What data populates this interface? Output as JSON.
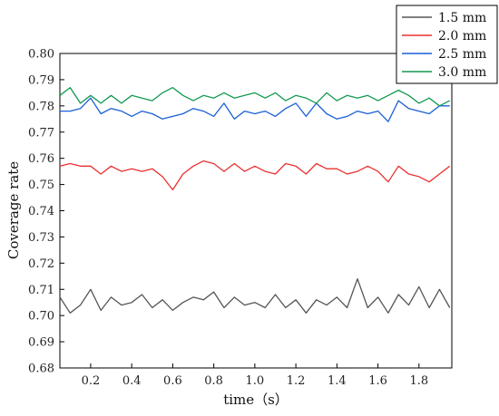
{
  "chart_data": {
    "type": "line",
    "xlabel": "time（s）",
    "ylabel": "Coverage rate",
    "xlim": [
      0.05,
      1.96
    ],
    "ylim": [
      0.68,
      0.8
    ],
    "x_ticks": [
      "0.2",
      "0.4",
      "0.6",
      "0.8",
      "1.0",
      "1.2",
      "1.4",
      "1.6",
      "1.8"
    ],
    "x_tick_values": [
      0.2,
      0.4,
      0.6,
      0.8,
      1.0,
      1.2,
      1.4,
      1.6,
      1.8
    ],
    "y_ticks": [
      "0.68",
      "0.69",
      "0.70",
      "0.71",
      "0.72",
      "0.73",
      "0.74",
      "0.75",
      "0.76",
      "0.77",
      "0.78",
      "0.79",
      "0.80"
    ],
    "y_tick_values": [
      0.68,
      0.69,
      0.7,
      0.71,
      0.72,
      0.73,
      0.74,
      0.75,
      0.76,
      0.77,
      0.78,
      0.79,
      0.8
    ],
    "grid": false,
    "legend_position": "top-right",
    "series": [
      {
        "name": "1.5 mm",
        "color": "#555555",
        "x": [
          0.05,
          0.1,
          0.15,
          0.2,
          0.25,
          0.3,
          0.35,
          0.4,
          0.45,
          0.5,
          0.55,
          0.6,
          0.65,
          0.7,
          0.75,
          0.8,
          0.85,
          0.9,
          0.95,
          1.0,
          1.05,
          1.1,
          1.15,
          1.2,
          1.25,
          1.3,
          1.35,
          1.4,
          1.45,
          1.5,
          1.55,
          1.6,
          1.65,
          1.7,
          1.75,
          1.8,
          1.85,
          1.9,
          1.95
        ],
        "values": [
          0.707,
          0.701,
          0.704,
          0.71,
          0.702,
          0.707,
          0.704,
          0.705,
          0.708,
          0.703,
          0.706,
          0.702,
          0.705,
          0.707,
          0.706,
          0.709,
          0.703,
          0.707,
          0.704,
          0.705,
          0.703,
          0.708,
          0.703,
          0.706,
          0.701,
          0.706,
          0.704,
          0.707,
          0.703,
          0.714,
          0.703,
          0.707,
          0.701,
          0.708,
          0.704,
          0.711,
          0.703,
          0.71,
          0.703
        ]
      },
      {
        "name": "2.0 mm",
        "color": "#e8312f",
        "x": [
          0.05,
          0.1,
          0.15,
          0.2,
          0.25,
          0.3,
          0.35,
          0.4,
          0.45,
          0.5,
          0.55,
          0.6,
          0.65,
          0.7,
          0.75,
          0.8,
          0.85,
          0.9,
          0.95,
          1.0,
          1.05,
          1.1,
          1.15,
          1.2,
          1.25,
          1.3,
          1.35,
          1.4,
          1.45,
          1.5,
          1.55,
          1.6,
          1.65,
          1.7,
          1.75,
          1.8,
          1.85,
          1.9,
          1.95
        ],
        "values": [
          0.757,
          0.758,
          0.757,
          0.757,
          0.754,
          0.757,
          0.755,
          0.756,
          0.755,
          0.756,
          0.753,
          0.748,
          0.754,
          0.757,
          0.759,
          0.758,
          0.755,
          0.758,
          0.755,
          0.757,
          0.755,
          0.754,
          0.758,
          0.757,
          0.754,
          0.758,
          0.756,
          0.756,
          0.754,
          0.755,
          0.757,
          0.755,
          0.751,
          0.757,
          0.754,
          0.753,
          0.751,
          0.754,
          0.757
        ]
      },
      {
        "name": "2.5 mm",
        "color": "#1a5fd6",
        "x": [
          0.05,
          0.1,
          0.15,
          0.2,
          0.25,
          0.3,
          0.35,
          0.4,
          0.45,
          0.5,
          0.55,
          0.6,
          0.65,
          0.7,
          0.75,
          0.8,
          0.85,
          0.9,
          0.95,
          1.0,
          1.05,
          1.1,
          1.15,
          1.2,
          1.25,
          1.3,
          1.35,
          1.4,
          1.45,
          1.5,
          1.55,
          1.6,
          1.65,
          1.7,
          1.75,
          1.8,
          1.85,
          1.9,
          1.95
        ],
        "values": [
          0.778,
          0.778,
          0.779,
          0.783,
          0.777,
          0.779,
          0.778,
          0.776,
          0.778,
          0.777,
          0.775,
          0.776,
          0.777,
          0.779,
          0.778,
          0.776,
          0.781,
          0.775,
          0.778,
          0.777,
          0.778,
          0.776,
          0.779,
          0.781,
          0.776,
          0.781,
          0.777,
          0.775,
          0.776,
          0.778,
          0.777,
          0.778,
          0.774,
          0.782,
          0.779,
          0.778,
          0.777,
          0.78,
          0.78
        ]
      },
      {
        "name": "3.0 mm",
        "color": "#119950",
        "x": [
          0.05,
          0.1,
          0.15,
          0.2,
          0.25,
          0.3,
          0.35,
          0.4,
          0.45,
          0.5,
          0.55,
          0.6,
          0.65,
          0.7,
          0.75,
          0.8,
          0.85,
          0.9,
          0.95,
          1.0,
          1.05,
          1.1,
          1.15,
          1.2,
          1.25,
          1.3,
          1.35,
          1.4,
          1.45,
          1.5,
          1.55,
          1.6,
          1.65,
          1.7,
          1.75,
          1.8,
          1.85,
          1.9,
          1.95
        ],
        "values": [
          0.784,
          0.787,
          0.781,
          0.784,
          0.781,
          0.784,
          0.781,
          0.784,
          0.783,
          0.782,
          0.785,
          0.787,
          0.784,
          0.782,
          0.784,
          0.783,
          0.785,
          0.783,
          0.784,
          0.785,
          0.783,
          0.785,
          0.782,
          0.784,
          0.783,
          0.781,
          0.785,
          0.782,
          0.784,
          0.783,
          0.784,
          0.782,
          0.784,
          0.786,
          0.784,
          0.781,
          0.783,
          0.78,
          0.782
        ]
      }
    ]
  }
}
